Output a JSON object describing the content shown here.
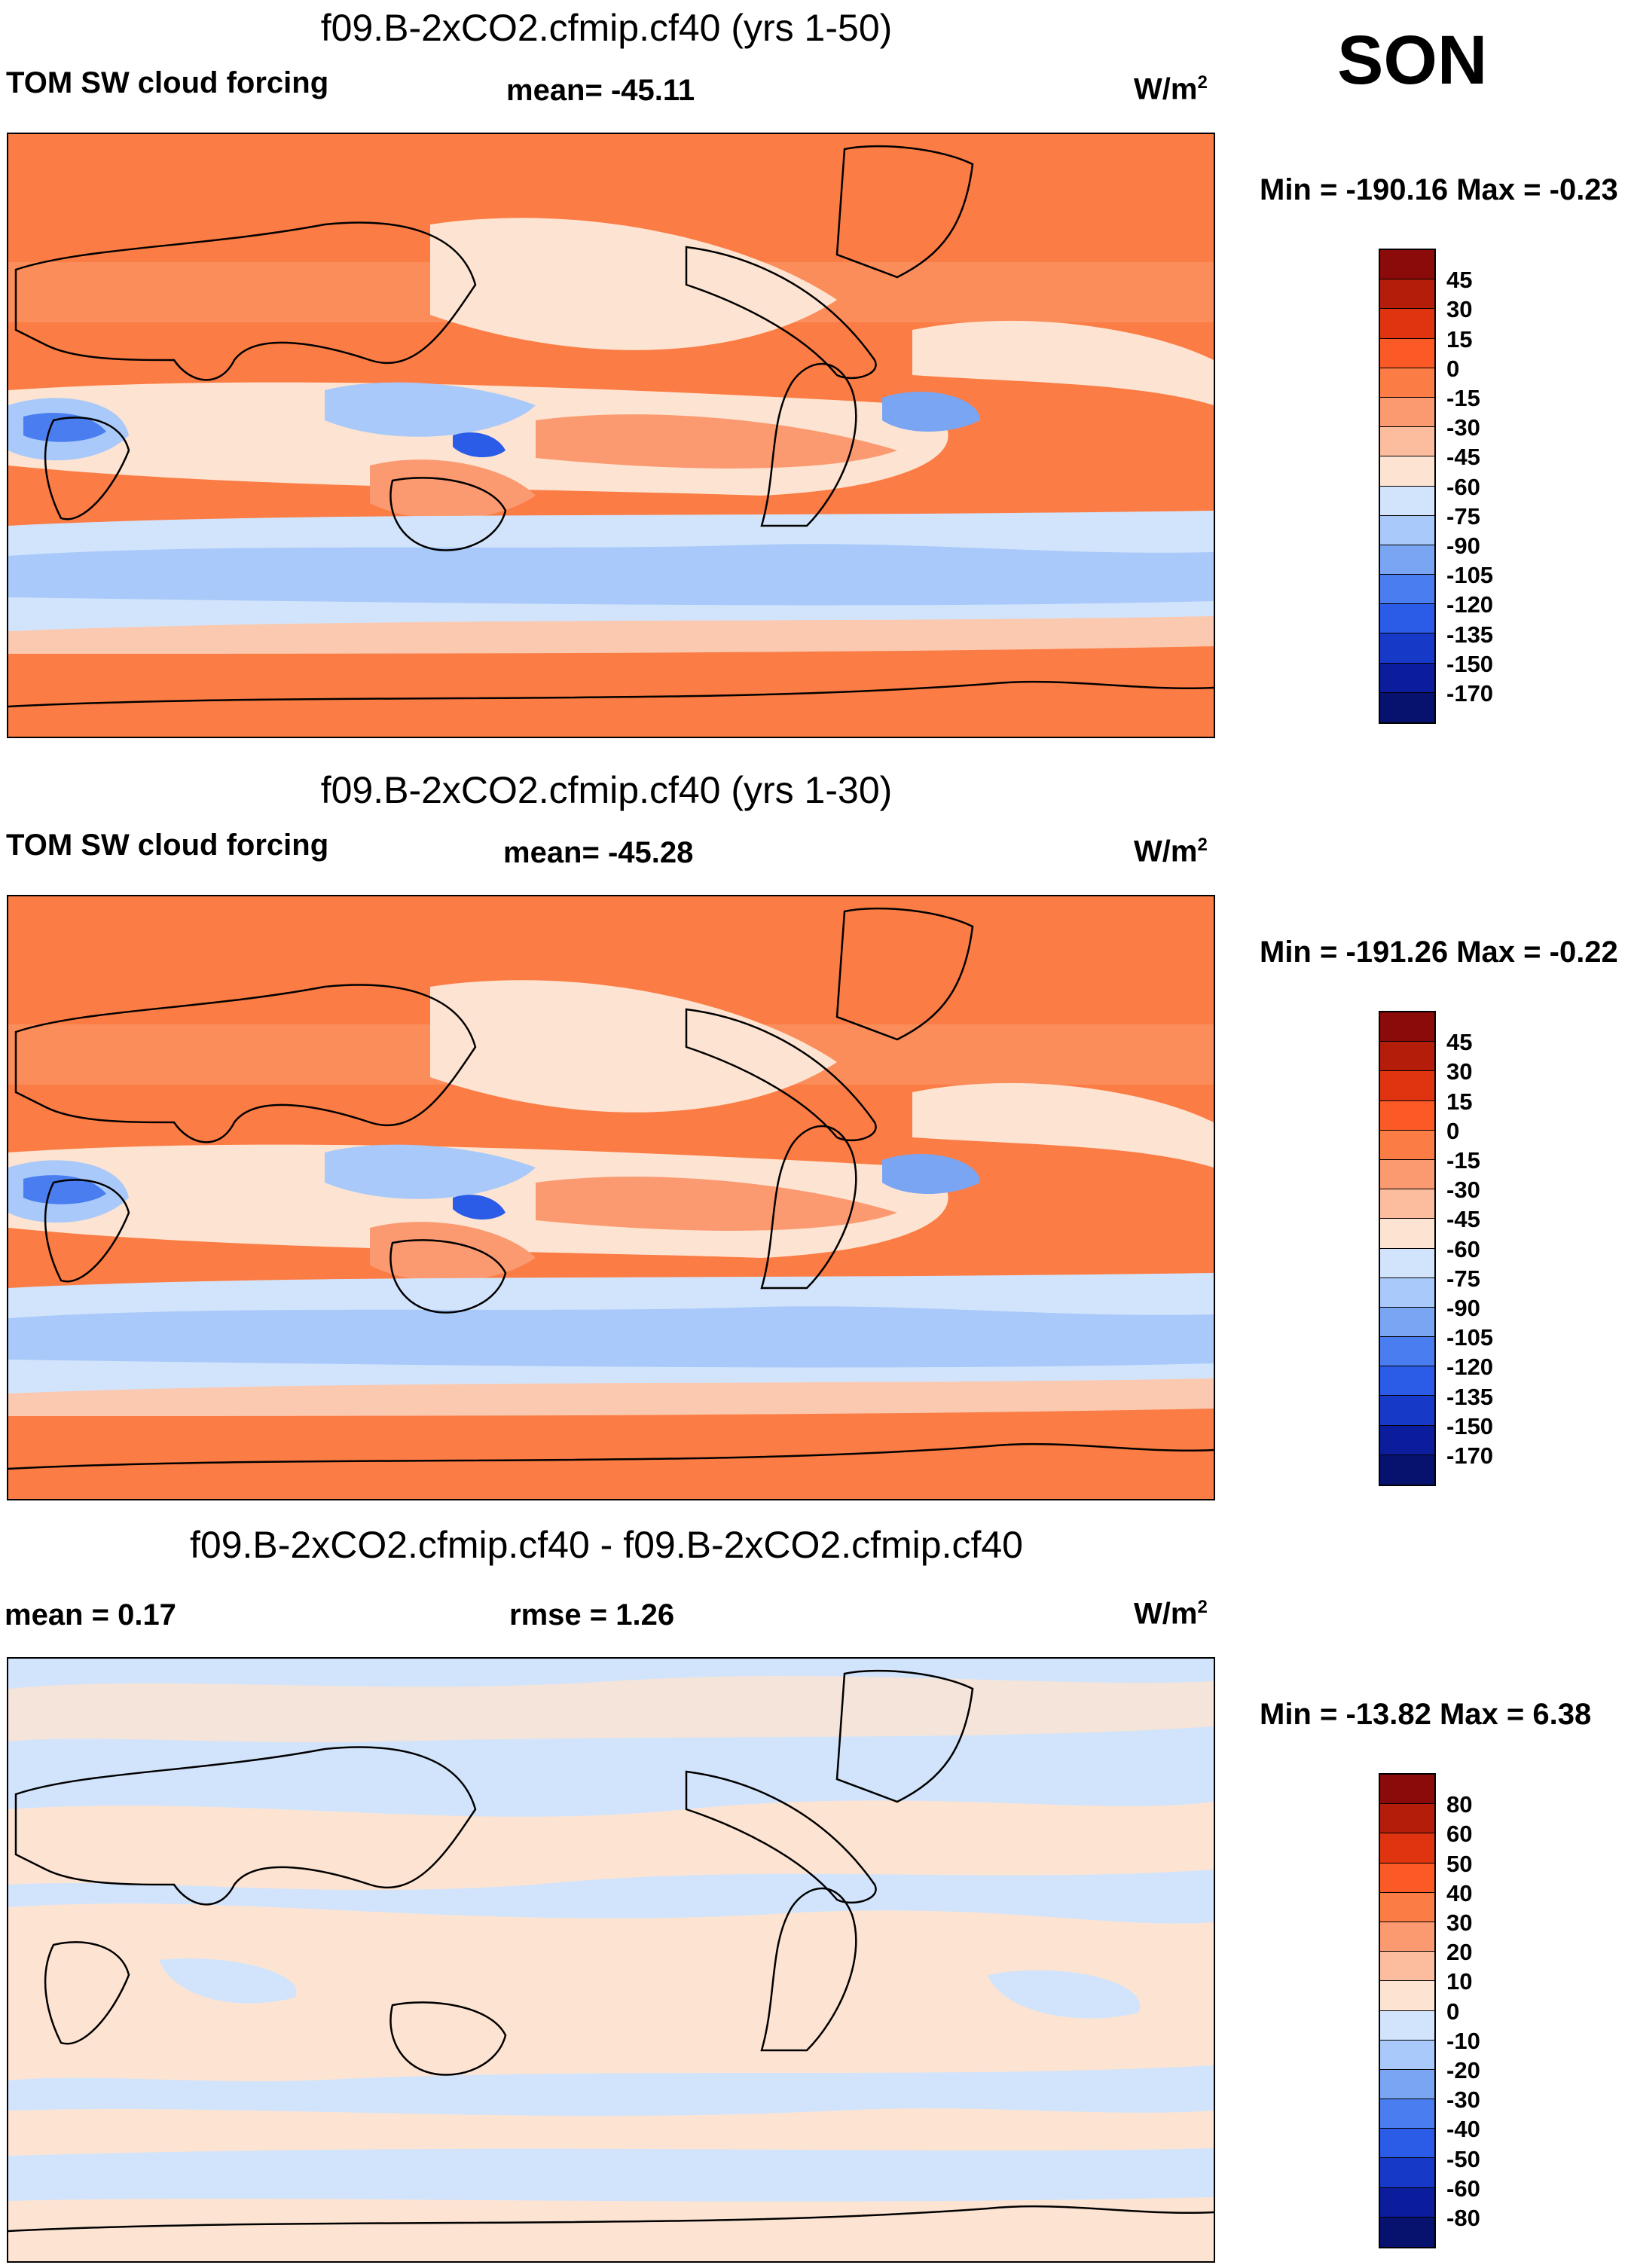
{
  "season": "SON",
  "panels": [
    {
      "title": "f09.B-2xCO2.cfmip.cf40 (yrs 1-50)",
      "left_label": "TOM SW cloud forcing",
      "center_label": "mean= -45.11",
      "units": "W/m",
      "units_sup": "2",
      "minmax": "Min = -190.16 Max =  -0.23",
      "colorbar": {
        "levels": [
          "45",
          "30",
          "15",
          "0",
          "-15",
          "-30",
          "-45",
          "-60",
          "-75",
          "-90",
          "-105",
          "-120",
          "-135",
          "-150",
          "-170"
        ],
        "colors": [
          "#8b0a0a",
          "#b51d0b",
          "#e0330f",
          "#fb5a26",
          "#fb7c44",
          "#fb9a70",
          "#fcbd9f",
          "#fde4d2",
          "#d2e4fb",
          "#a8c9f9",
          "#7aa5f3",
          "#4a7ef0",
          "#2a5ce8",
          "#1739c8",
          "#0b1d9c",
          "#07126e"
        ]
      }
    },
    {
      "title": "f09.B-2xCO2.cfmip.cf40 (yrs 1-30)",
      "left_label": "TOM SW cloud forcing",
      "center_label": "mean= -45.28",
      "units": "W/m",
      "units_sup": "2",
      "minmax": "Min = -191.26 Max =  -0.22",
      "colorbar": {
        "levels": [
          "45",
          "30",
          "15",
          "0",
          "-15",
          "-30",
          "-45",
          "-60",
          "-75",
          "-90",
          "-105",
          "-120",
          "-135",
          "-150",
          "-170"
        ],
        "colors": [
          "#8b0a0a",
          "#b51d0b",
          "#e0330f",
          "#fb5a26",
          "#fb7c44",
          "#fb9a70",
          "#fcbd9f",
          "#fde4d2",
          "#d2e4fb",
          "#a8c9f9",
          "#7aa5f3",
          "#4a7ef0",
          "#2a5ce8",
          "#1739c8",
          "#0b1d9c",
          "#07126e"
        ]
      }
    },
    {
      "title": "f09.B-2xCO2.cfmip.cf40 - f09.B-2xCO2.cfmip.cf40",
      "left_label": "mean =   0.17",
      "center_label": "rmse =   1.26",
      "units": "W/m",
      "units_sup": "2",
      "minmax": "Min = -13.82 Max =   6.38",
      "colorbar": {
        "levels": [
          "80",
          "60",
          "50",
          "40",
          "30",
          "20",
          "10",
          "0",
          "-10",
          "-20",
          "-30",
          "-40",
          "-50",
          "-60",
          "-80"
        ],
        "colors": [
          "#8b0a0a",
          "#b51d0b",
          "#e0330f",
          "#fb5a26",
          "#fb7c44",
          "#fb9a70",
          "#fcbd9f",
          "#fde4d2",
          "#d2e4fb",
          "#a8c9f9",
          "#7aa5f3",
          "#4a7ef0",
          "#2a5ce8",
          "#1739c8",
          "#0b1d9c",
          "#07126e"
        ]
      }
    }
  ],
  "chart_data": [
    {
      "type": "heatmap",
      "title": "f09.B-2xCO2.cfmip.cf40 (yrs 1-50)",
      "variable": "TOM SW cloud forcing",
      "season": "SON",
      "units": "W/m2",
      "mean": -45.11,
      "min": -190.16,
      "max": -0.23,
      "contour_levels": [
        45,
        30,
        15,
        0,
        -15,
        -30,
        -45,
        -60,
        -75,
        -90,
        -105,
        -120,
        -135,
        -150,
        -170
      ]
    },
    {
      "type": "heatmap",
      "title": "f09.B-2xCO2.cfmip.cf40 (yrs 1-30)",
      "variable": "TOM SW cloud forcing",
      "season": "SON",
      "units": "W/m2",
      "mean": -45.28,
      "min": -191.26,
      "max": -0.22,
      "contour_levels": [
        45,
        30,
        15,
        0,
        -15,
        -30,
        -45,
        -60,
        -75,
        -90,
        -105,
        -120,
        -135,
        -150,
        -170
      ]
    },
    {
      "type": "heatmap",
      "title": "f09.B-2xCO2.cfmip.cf40 - f09.B-2xCO2.cfmip.cf40",
      "season": "SON",
      "units": "W/m2",
      "mean": 0.17,
      "rmse": 1.26,
      "min": -13.82,
      "max": 6.38,
      "contour_levels": [
        80,
        60,
        50,
        40,
        30,
        20,
        10,
        0,
        -10,
        -20,
        -30,
        -40,
        -50,
        -60,
        -80
      ]
    }
  ]
}
